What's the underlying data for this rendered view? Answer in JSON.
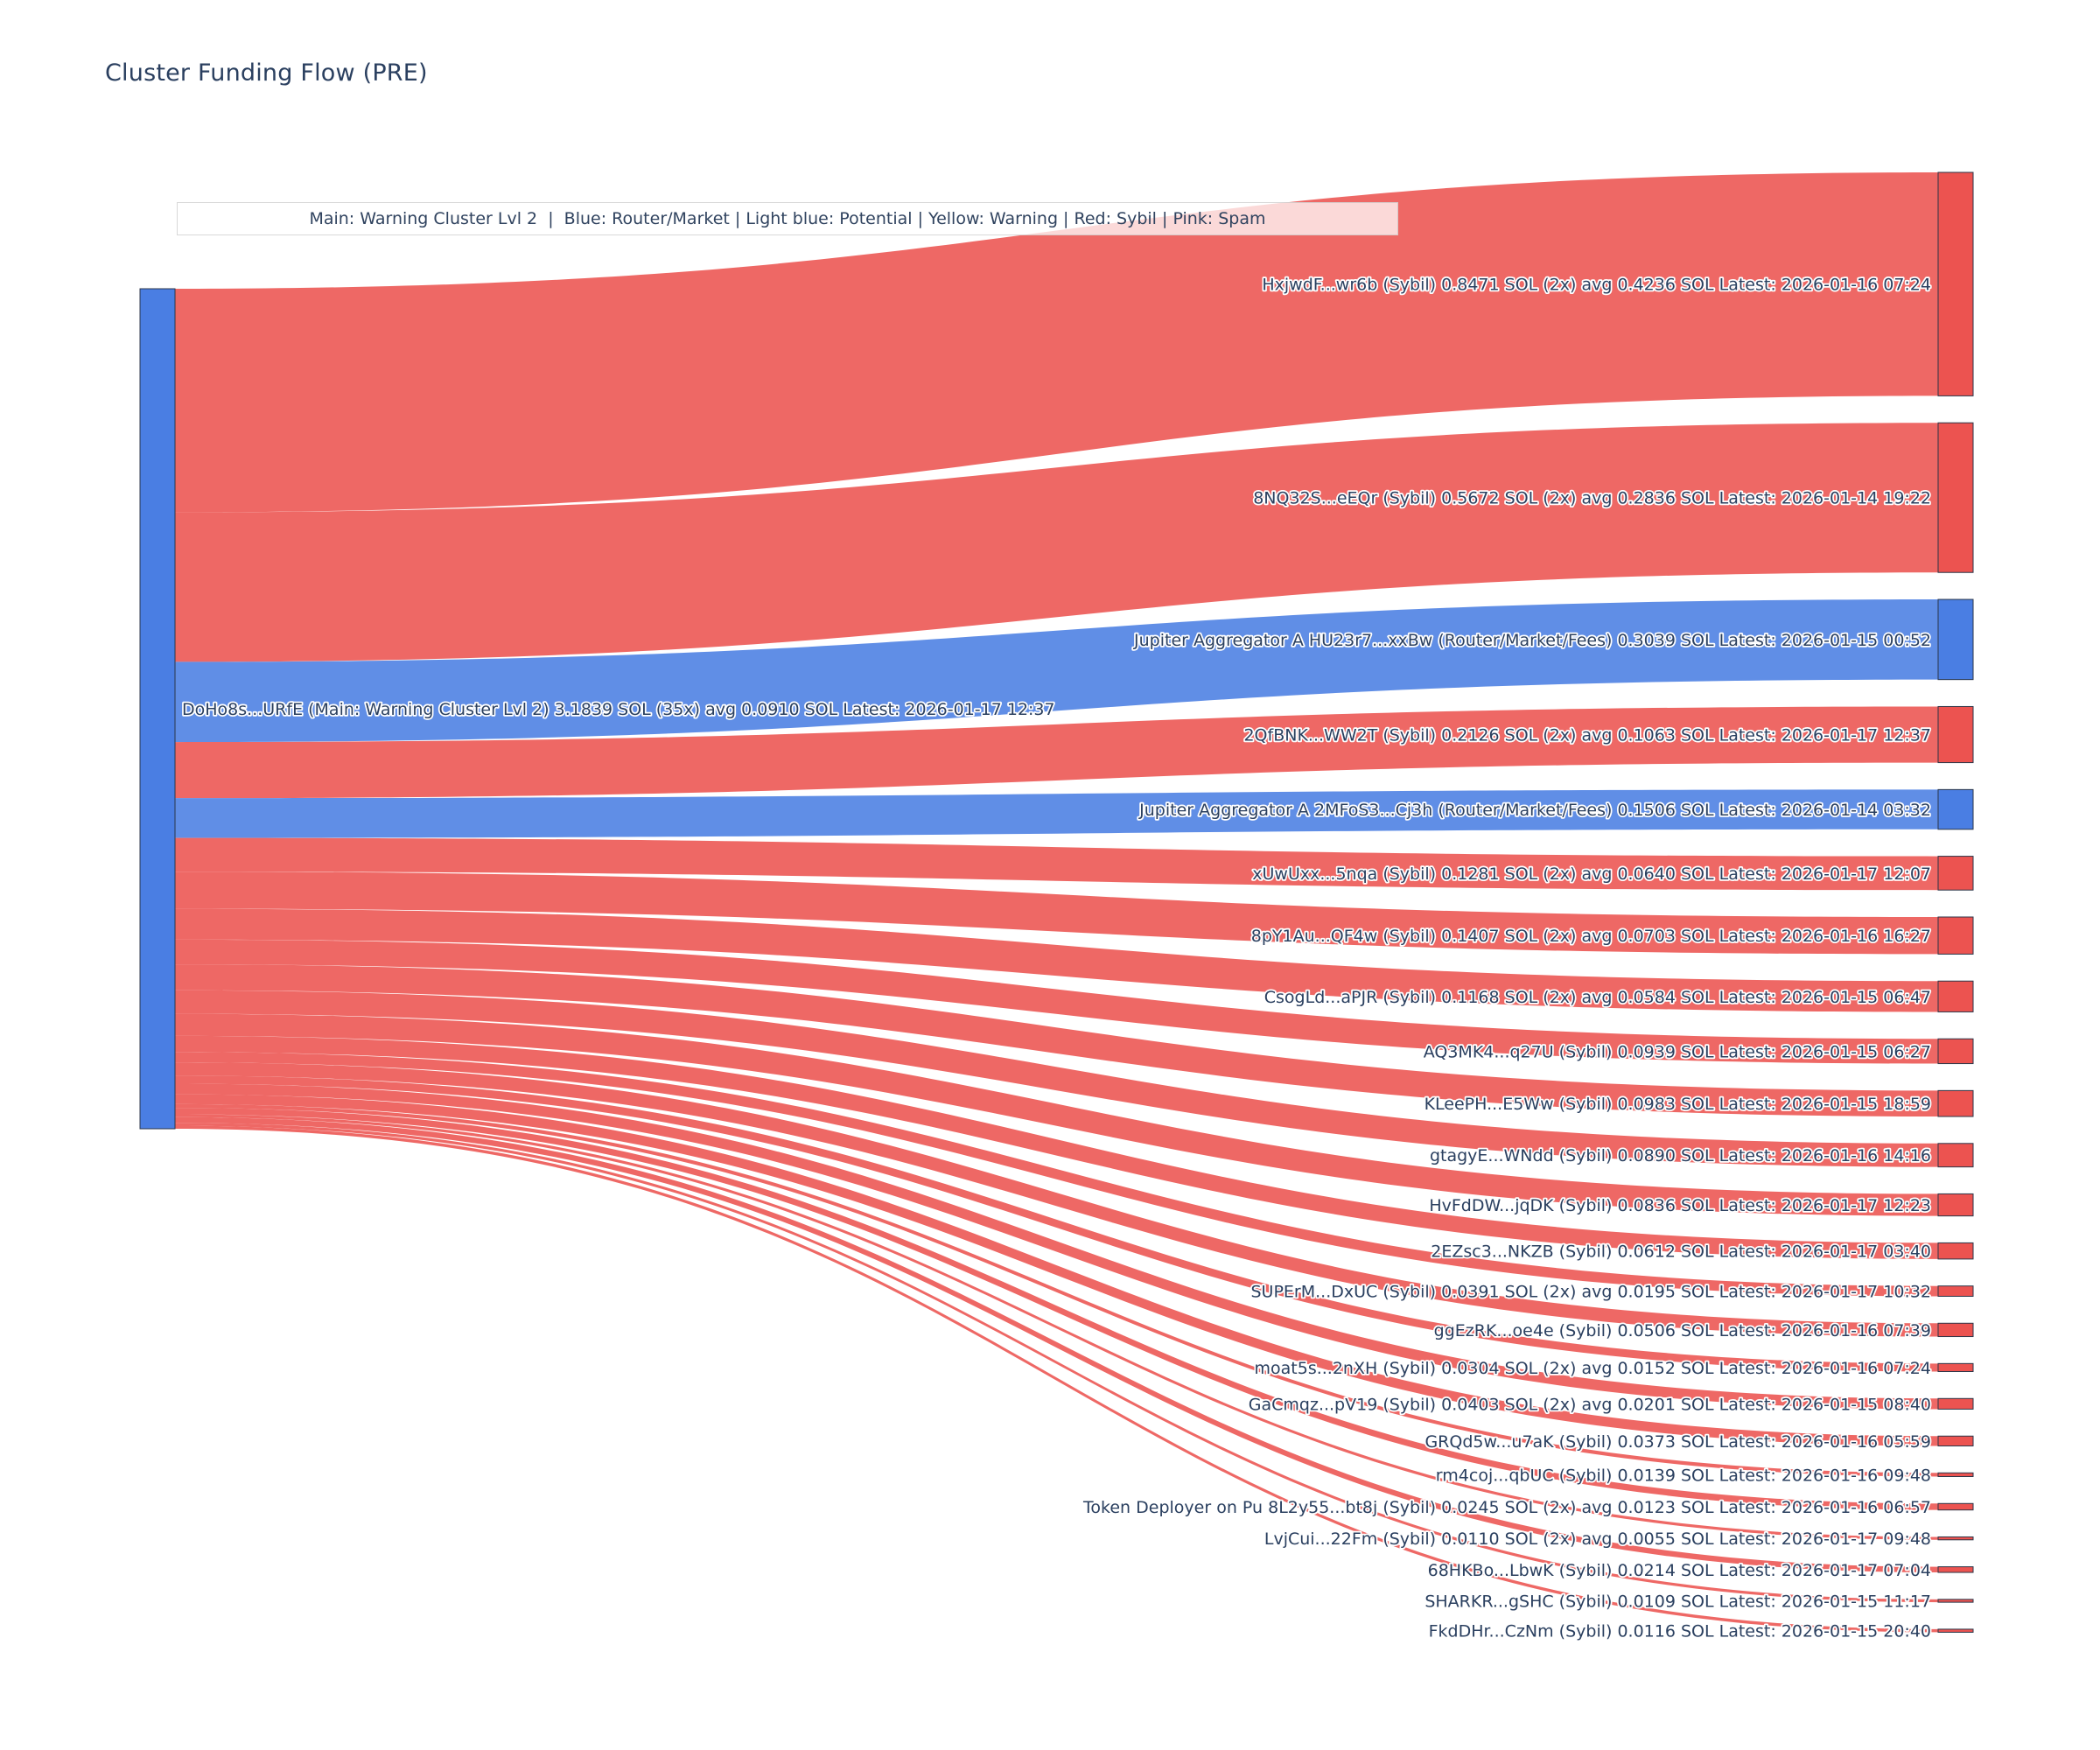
{
  "title": "Cluster Funding Flow (PRE)",
  "legend_note": "Main: Warning Cluster Lvl 2  |  Blue: Router/Market | Light blue: Potential | Yellow: Warning | Red: Sybil | Pink: Spam",
  "colors": {
    "sybil": "#ec5350",
    "router_market": "#4a7ee3",
    "main": "#4a7ee3",
    "text": "#2a3f5f",
    "background": "#ffffff",
    "node_border": "#2b3648"
  },
  "chart_data": {
    "type": "sankey",
    "title": "Cluster Funding Flow (PRE)",
    "unit": "SOL",
    "legend": "Main: Warning Cluster Lvl 2  |  Blue: Router/Market | Light blue: Potential | Yellow: Warning | Red: Sybil | Pink: Spam",
    "source": {
      "label": "DoHo8s...URfE (Main: Warning Cluster Lvl 2) 3.1839 SOL (35x) avg 0.0910 SOL Latest: 2026-01-17 12:37",
      "total_sol": 3.1839,
      "color_key": "main"
    },
    "links": [
      {
        "label": "HxjwdF...wr6b (Sybil) 0.8471 SOL (2x) avg 0.4236 SOL Latest: 2026-01-16 07:24",
        "value": 0.8471,
        "color_key": "sybil"
      },
      {
        "label": "8NQ32S...eEQr (Sybil) 0.5672 SOL (2x) avg 0.2836 SOL Latest: 2026-01-14 19:22",
        "value": 0.5672,
        "color_key": "sybil"
      },
      {
        "label": "Jupiter Aggregator A HU23r7...xxBw (Router/Market/Fees) 0.3039 SOL Latest: 2026-01-15 00:52",
        "value": 0.3039,
        "color_key": "router_market"
      },
      {
        "label": "2QfBNK...WW2T (Sybil) 0.2126 SOL (2x) avg 0.1063 SOL Latest: 2026-01-17 12:37",
        "value": 0.2126,
        "color_key": "sybil"
      },
      {
        "label": "Jupiter Aggregator A 2MFoS3...Cj3h (Router/Market/Fees) 0.1506 SOL Latest: 2026-01-14 03:32",
        "value": 0.1506,
        "color_key": "router_market"
      },
      {
        "label": "xUwUxx...5nqa (Sybil) 0.1281 SOL (2x) avg 0.0640 SOL Latest: 2026-01-17 12:07",
        "value": 0.1281,
        "color_key": "sybil"
      },
      {
        "label": "8pY1Au...QF4w (Sybil) 0.1407 SOL (2x) avg 0.0703 SOL Latest: 2026-01-16 16:27",
        "value": 0.1407,
        "color_key": "sybil"
      },
      {
        "label": "CsogLd...aPJR (Sybil) 0.1168 SOL (2x) avg 0.0584 SOL Latest: 2026-01-15 06:47",
        "value": 0.1168,
        "color_key": "sybil"
      },
      {
        "label": "AQ3MK4...q27U (Sybil) 0.0939 SOL Latest: 2026-01-15 06:27",
        "value": 0.0939,
        "color_key": "sybil"
      },
      {
        "label": "KLeePH...E5Ww (Sybil) 0.0983 SOL Latest: 2026-01-15 18:59",
        "value": 0.0983,
        "color_key": "sybil"
      },
      {
        "label": "gtagyE...WNdd (Sybil) 0.0890 SOL Latest: 2026-01-16 14:16",
        "value": 0.089,
        "color_key": "sybil"
      },
      {
        "label": "HvFdDW...jqDK (Sybil) 0.0836 SOL Latest: 2026-01-17 12:23",
        "value": 0.0836,
        "color_key": "sybil"
      },
      {
        "label": "2EZsc3...NKZB (Sybil) 0.0612 SOL Latest: 2026-01-17 03:40",
        "value": 0.0612,
        "color_key": "sybil"
      },
      {
        "label": "SUPErM...DxUC (Sybil) 0.0391 SOL (2x) avg 0.0195 SOL Latest: 2026-01-17 10:32",
        "value": 0.0391,
        "color_key": "sybil"
      },
      {
        "label": "ggEzRK...oe4e (Sybil) 0.0506 SOL Latest: 2026-01-16 07:39",
        "value": 0.0506,
        "color_key": "sybil"
      },
      {
        "label": "moat5s...2nXH (Sybil) 0.0304 SOL (2x) avg 0.0152 SOL Latest: 2026-01-16 07:24",
        "value": 0.0304,
        "color_key": "sybil"
      },
      {
        "label": "GaCmqz...pV19 (Sybil) 0.0403 SOL (2x) avg 0.0201 SOL Latest: 2026-01-15 08:40",
        "value": 0.0403,
        "color_key": "sybil"
      },
      {
        "label": "GRQd5w...u7aK (Sybil) 0.0373 SOL Latest: 2026-01-16 05:59",
        "value": 0.0373,
        "color_key": "sybil"
      },
      {
        "label": "rm4coj...qbUC (Sybil) 0.0139 SOL Latest: 2026-01-16 09:48",
        "value": 0.0139,
        "color_key": "sybil"
      },
      {
        "label": "Token Deployer on Pu 8L2y55...bt8j (Sybil) 0.0245 SOL (2x) avg 0.0123 SOL Latest: 2026-01-16 06:57",
        "value": 0.0245,
        "color_key": "sybil"
      },
      {
        "label": "LvjCui...22Fm (Sybil) 0.0110 SOL (2x) avg 0.0055 SOL Latest: 2026-01-17 09:48",
        "value": 0.011,
        "color_key": "sybil"
      },
      {
        "label": "68HKBo...LbwK (Sybil) 0.0214 SOL Latest: 2026-01-17 07:04",
        "value": 0.0214,
        "color_key": "sybil"
      },
      {
        "label": "SHARKR...gSHC (Sybil) 0.0109 SOL Latest: 2026-01-15 11:17",
        "value": 0.0109,
        "color_key": "sybil"
      },
      {
        "label": "FkdDHr...CzNm (Sybil) 0.0116 SOL Latest: 2026-01-15 20:40",
        "value": 0.0116,
        "color_key": "sybil"
      }
    ]
  }
}
